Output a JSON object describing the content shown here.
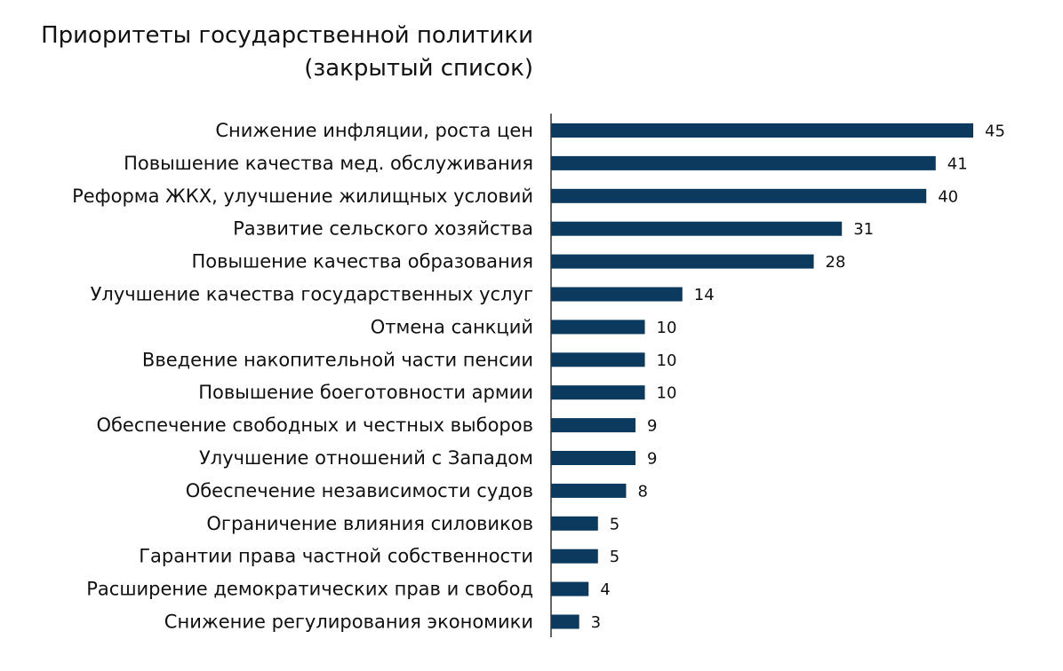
{
  "chart_data": {
    "type": "bar",
    "orientation": "horizontal",
    "title": [
      "Приоритеты государственной политики",
      "(закрытый список)"
    ],
    "categories": [
      "Снижение инфляции, роста цен",
      "Повышение качества мед. обслуживания",
      "Реформа ЖКХ, улучшение жилищных условий",
      "Развитие сельского хозяйства",
      "Повышение качества образования",
      "Улучшение качества государственных услуг",
      "Отмена санкций",
      "Введение накопительной части пенсии",
      "Повышение боеготовности армии",
      "Обеспечение свободных и честных выборов",
      "Улучшение отношений с Западом",
      "Обеспечение независимости судов",
      "Ограничение влияния силовиков",
      "Гарантии права частной собственности",
      "Расширение демократических прав и свобод",
      "Снижение регулирования экономики"
    ],
    "values": [
      45,
      41,
      40,
      31,
      28,
      14,
      10,
      10,
      10,
      9,
      9,
      8,
      5,
      5,
      4,
      3
    ],
    "value_labels": [
      "45",
      "41",
      "40",
      "31",
      "28",
      "14",
      "10",
      "10",
      "10",
      "9",
      "9",
      "8",
      "5",
      "5",
      "4",
      "3"
    ],
    "xlim": [
      0,
      45
    ],
    "grid": false,
    "legend": "none",
    "colors": {
      "bar": "#0b3a5e",
      "axis": "#333333",
      "text": "#111111"
    }
  }
}
